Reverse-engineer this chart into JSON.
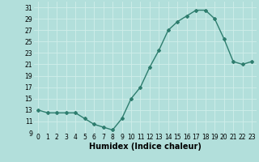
{
  "x": [
    0,
    1,
    2,
    3,
    4,
    5,
    6,
    7,
    8,
    9,
    10,
    11,
    12,
    13,
    14,
    15,
    16,
    17,
    18,
    19,
    20,
    21,
    22,
    23
  ],
  "y": [
    13,
    12.5,
    12.5,
    12.5,
    12.5,
    11.5,
    10.5,
    10,
    9.5,
    11.5,
    15,
    17,
    20.5,
    23.5,
    27,
    28.5,
    29.5,
    30.5,
    30.5,
    29,
    25.5,
    21.5,
    21,
    21.5
  ],
  "line_color": "#2e7d6e",
  "marker": "D",
  "markersize": 2,
  "linewidth": 1.0,
  "xlabel": "Humidex (Indice chaleur)",
  "xlabel_fontsize": 7,
  "bg_color": "#b2dfdb",
  "grid_color": "#d0eeea",
  "xlim": [
    -0.5,
    23.5
  ],
  "ylim": [
    9,
    32
  ],
  "yticks": [
    9,
    11,
    13,
    15,
    17,
    19,
    21,
    23,
    25,
    27,
    29,
    31
  ],
  "xticks": [
    0,
    1,
    2,
    3,
    4,
    5,
    6,
    7,
    8,
    9,
    10,
    11,
    12,
    13,
    14,
    15,
    16,
    17,
    18,
    19,
    20,
    21,
    22,
    23
  ],
  "tick_fontsize": 5.5
}
